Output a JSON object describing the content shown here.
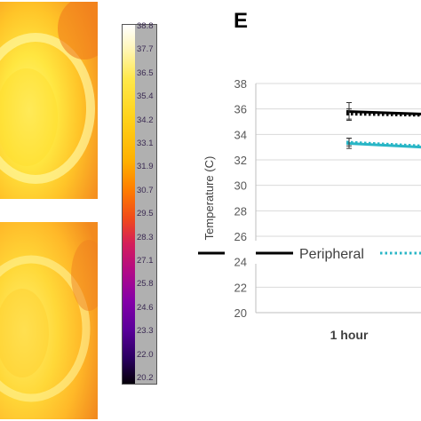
{
  "panel_letter": "E",
  "colorbar": {
    "labels": [
      "38.8",
      "37.7",
      "36.5",
      "35.4",
      "34.2",
      "33.1",
      "31.9",
      "30.7",
      "29.5",
      "28.3",
      "27.1",
      "25.8",
      "24.6",
      "23.3",
      "22.0",
      "20.2"
    ],
    "colors": {
      "hot": "#ffffff",
      "warm": "#ffd21a",
      "mid": "#d41e5a",
      "cool": "#5a009a",
      "cold": "#050008"
    }
  },
  "thermal_images": {
    "background_color": "#ffc22a",
    "core_color": "#ffee55",
    "edge_color": "#f28a1e"
  },
  "chart_data": {
    "type": "line",
    "ylabel": "Temperature (C)",
    "ylim": [
      20,
      38
    ],
    "yticks": [
      20,
      22,
      24,
      26,
      28,
      30,
      32,
      34,
      36,
      38
    ],
    "categories": [
      "1 hour"
    ],
    "grid": true,
    "legend_position": "bottom-left inside",
    "series": [
      {
        "name": "Peripheral",
        "color": "#000000",
        "style": "solid",
        "values": [
          35.8
        ],
        "error": [
          0.7
        ],
        "ends_at": 35.6
      },
      {
        "name": "Peripheral",
        "color": "#000000",
        "style": "dotted",
        "values": [
          35.6
        ],
        "error": [
          0.4
        ],
        "ends_at": 35.5
      },
      {
        "name": "",
        "color": "#29b6c6",
        "style": "solid",
        "values": [
          33.3
        ],
        "error": [
          0.4
        ],
        "ends_at": 33.0
      },
      {
        "name": "",
        "color": "#29b6c6",
        "style": "dotted",
        "values": [
          33.4
        ],
        "error": [
          0.3
        ],
        "ends_at": 33.1
      }
    ],
    "legend": [
      {
        "label": "Peripheral",
        "color": "#000000",
        "style": "solid"
      },
      {
        "label": "",
        "color": "#29b6c6",
        "style": "dotted"
      }
    ]
  }
}
